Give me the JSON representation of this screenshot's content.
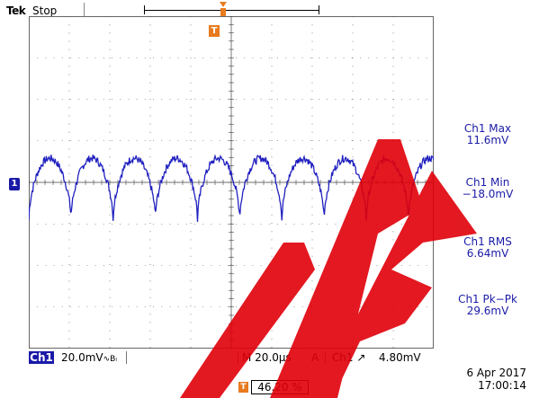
{
  "header": {
    "brand": "Tek",
    "run_state": "Stop"
  },
  "trigger_marker_label": "T",
  "channel_ground_label": "1",
  "measurements": [
    {
      "name": "Ch1 Max",
      "value": "11.6mV"
    },
    {
      "name": "Ch1 Min",
      "value": "−18.0mV"
    },
    {
      "name": "Ch1 RMS",
      "value": "6.64mV"
    },
    {
      "name": "Ch1 Pk−Pk",
      "value": "29.6mV"
    }
  ],
  "bottom": {
    "channel": "Ch1",
    "vertical_scale": "20.0mV",
    "coupling_symbol": "∿Bₗ",
    "timebase": "M 20.0µs",
    "trigger_mode": "A",
    "trigger_source": "Ch1",
    "trigger_slope": "↗",
    "trigger_level": "4.80mV",
    "horizontal_position": "46.20 %",
    "date": "6 Apr  2017",
    "time": "17:00:14"
  },
  "colors": {
    "trace": "#2020c0",
    "accent_orange": "#e87b1e",
    "watermark": "#e0000a",
    "graticule": "#444444"
  },
  "waveform": {
    "cycles": 9.6,
    "max_div": 0.58,
    "min_div": -0.9
  }
}
